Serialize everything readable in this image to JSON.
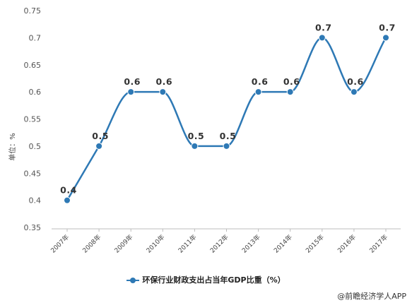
{
  "chart_data": {
    "type": "line",
    "categories": [
      "2007年",
      "2008年",
      "2009年",
      "2010年",
      "2011年",
      "2012年",
      "2013年",
      "2014年",
      "2015年",
      "2016年",
      "2017年"
    ],
    "series": [
      {
        "name": "环保行业财政支出占当年GDP比重（%）",
        "values": [
          0.4,
          0.5,
          0.6,
          0.6,
          0.5,
          0.5,
          0.6,
          0.6,
          0.7,
          0.6,
          0.7
        ],
        "color": "#2e79b5"
      }
    ],
    "ylabel": "单位：%",
    "ylim": [
      0.35,
      0.75
    ],
    "yticks": [
      0.35,
      0.4,
      0.45,
      0.5,
      0.55,
      0.6,
      0.65,
      0.7,
      0.75
    ],
    "grid": false,
    "smooth": true,
    "data_labels": true,
    "legend_position": "bottom-center"
  },
  "source": "@前瞻经济学人APP"
}
